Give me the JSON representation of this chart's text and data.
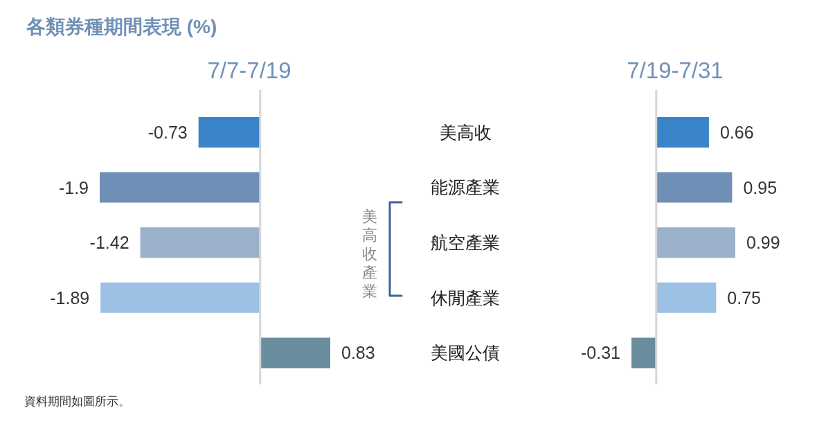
{
  "chart_data": [
    {
      "type": "bar",
      "orientation": "horizontal",
      "title": "各類券種期間表現 (%)",
      "subtitle": "7/7-7/19",
      "categories": [
        "美高收",
        "能源產業",
        "航空產業",
        "休閒產業",
        "美國公債"
      ],
      "values": [
        -0.73,
        -1.9,
        -1.42,
        -1.89,
        0.83
      ],
      "colors": [
        "#3a84c8",
        "#6f8fb6",
        "#9bb0cb",
        "#9dc1e4",
        "#6a8d9e"
      ],
      "data_labels": true,
      "tick_labels": false,
      "annotations": [
        "資料期間如圖所示。"
      ]
    },
    {
      "type": "bar",
      "orientation": "horizontal",
      "subtitle": "7/19-7/31",
      "categories": [
        "美高收",
        "能源產業",
        "航空產業",
        "休閒產業",
        "美國公債"
      ],
      "values": [
        0.66,
        0.95,
        0.99,
        0.75,
        -0.31
      ],
      "colors": [
        "#3a84c8",
        "#6f8fb6",
        "#9bb0cb",
        "#9dc1e4",
        "#6a8d9e"
      ],
      "data_labels": true,
      "tick_labels": "y",
      "annotations": [
        "美高收產業"
      ]
    }
  ]
}
